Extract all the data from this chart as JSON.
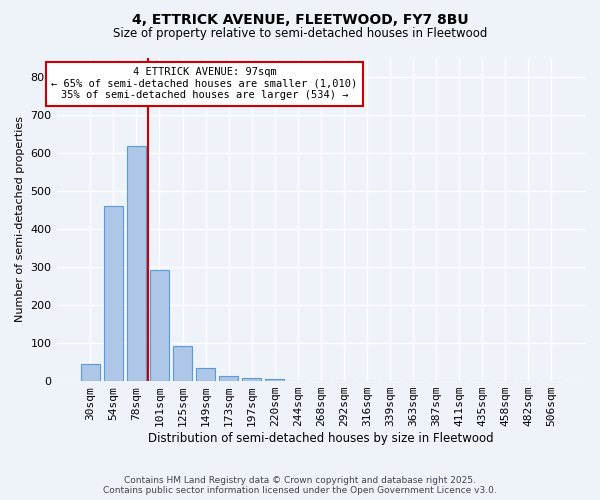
{
  "title1": "4, ETTRICK AVENUE, FLEETWOOD, FY7 8BU",
  "title2": "Size of property relative to semi-detached houses in Fleetwood",
  "xlabel": "Distribution of semi-detached houses by size in Fleetwood",
  "ylabel": "Number of semi-detached properties",
  "categories": [
    "30sqm",
    "54sqm",
    "78sqm",
    "101sqm",
    "125sqm",
    "149sqm",
    "173sqm",
    "197sqm",
    "220sqm",
    "244sqm",
    "268sqm",
    "292sqm",
    "316sqm",
    "339sqm",
    "363sqm",
    "387sqm",
    "411sqm",
    "435sqm",
    "458sqm",
    "482sqm",
    "506sqm"
  ],
  "values": [
    44,
    459,
    617,
    291,
    93,
    34,
    14,
    7,
    5,
    0,
    0,
    0,
    0,
    0,
    0,
    0,
    0,
    0,
    0,
    0,
    0
  ],
  "bar_color": "#aec6e8",
  "bar_edge_color": "#5b9bd5",
  "bg_color": "#eef2f9",
  "grid_color": "#ffffff",
  "vline_color": "#cc0000",
  "annotation_title": "4 ETTRICK AVENUE: 97sqm",
  "annotation_line1": "← 65% of semi-detached houses are smaller (1,010)",
  "annotation_line2": "35% of semi-detached houses are larger (534) →",
  "annotation_box_color": "#ffffff",
  "annotation_edge_color": "#cc0000",
  "ylim": [
    0,
    850
  ],
  "yticks": [
    0,
    100,
    200,
    300,
    400,
    500,
    600,
    700,
    800
  ],
  "footer1": "Contains HM Land Registry data © Crown copyright and database right 2025.",
  "footer2": "Contains public sector information licensed under the Open Government Licence v3.0."
}
